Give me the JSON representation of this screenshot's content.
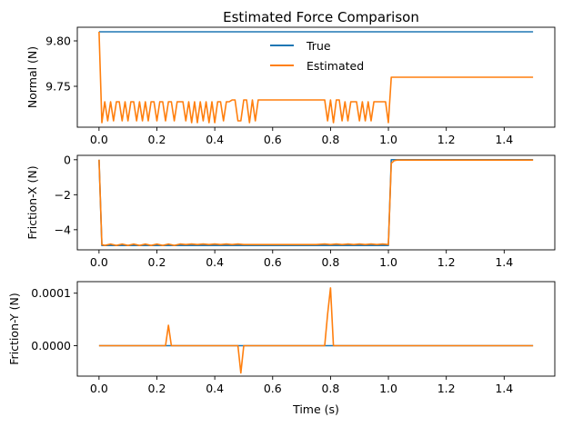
{
  "figure": {
    "title": "Estimated Force Comparison",
    "colors": {
      "true": "#1f77b4",
      "estimated": "#ff7f0e"
    }
  },
  "legend": {
    "placement": "upper-center",
    "labels": [
      "True",
      "Estimated"
    ]
  },
  "chart_data": [
    {
      "type": "line",
      "title": "Estimated Force Comparison",
      "xlabel": "",
      "ylabel": "Normal (N)",
      "xlim": [
        -0.075,
        1.575
      ],
      "ylim": [
        9.705,
        9.815
      ],
      "xticks": [
        0.0,
        0.2,
        0.4,
        0.6,
        0.8,
        1.0,
        1.2,
        1.4
      ],
      "xtick_labels": [
        "0.0",
        "0.2",
        "0.4",
        "0.6",
        "0.8",
        "1.0",
        "1.2",
        "1.4"
      ],
      "yticks": [
        9.75,
        9.8
      ],
      "ytick_labels": [
        "9.75",
        "9.80"
      ],
      "legend": "upper-center",
      "series": [
        {
          "name": "True",
          "x": [
            0.0,
            1.5
          ],
          "y": [
            9.81,
            9.81
          ]
        },
        {
          "name": "Estimated",
          "x": [
            0.0,
            0.01,
            0.02,
            0.03,
            0.04,
            0.05,
            0.06,
            0.07,
            0.08,
            0.09,
            0.1,
            0.11,
            0.12,
            0.13,
            0.14,
            0.15,
            0.16,
            0.17,
            0.18,
            0.19,
            0.2,
            0.21,
            0.22,
            0.23,
            0.24,
            0.25,
            0.26,
            0.27,
            0.28,
            0.29,
            0.3,
            0.31,
            0.32,
            0.33,
            0.34,
            0.35,
            0.36,
            0.37,
            0.38,
            0.39,
            0.4,
            0.41,
            0.42,
            0.43,
            0.44,
            0.45,
            0.46,
            0.47,
            0.48,
            0.49,
            0.5,
            0.51,
            0.52,
            0.53,
            0.54,
            0.55,
            0.56,
            0.57,
            0.6,
            0.7,
            0.78,
            0.79,
            0.8,
            0.81,
            0.82,
            0.83,
            0.84,
            0.85,
            0.86,
            0.87,
            0.88,
            0.89,
            0.9,
            0.91,
            0.92,
            0.93,
            0.94,
            0.95,
            0.96,
            0.97,
            0.98,
            0.99,
            1.0,
            1.01,
            1.02,
            1.5
          ],
          "y": [
            9.81,
            9.71,
            9.733,
            9.712,
            9.733,
            9.712,
            9.733,
            9.733,
            9.712,
            9.733,
            9.712,
            9.733,
            9.733,
            9.712,
            9.733,
            9.712,
            9.733,
            9.712,
            9.733,
            9.733,
            9.712,
            9.733,
            9.733,
            9.712,
            9.733,
            9.733,
            9.712,
            9.733,
            9.733,
            9.733,
            9.712,
            9.733,
            9.71,
            9.733,
            9.71,
            9.733,
            9.712,
            9.733,
            9.71,
            9.733,
            9.71,
            9.733,
            9.733,
            9.712,
            9.733,
            9.733,
            9.735,
            9.735,
            9.712,
            9.712,
            9.735,
            9.735,
            9.71,
            9.735,
            9.712,
            9.735,
            9.735,
            9.735,
            9.735,
            9.735,
            9.735,
            9.712,
            9.735,
            9.71,
            9.735,
            9.735,
            9.712,
            9.733,
            9.712,
            9.733,
            9.733,
            9.733,
            9.712,
            9.733,
            9.712,
            9.733,
            9.712,
            9.733,
            9.733,
            9.733,
            9.733,
            9.733,
            9.71,
            9.76,
            9.76,
            9.76
          ]
        }
      ]
    },
    {
      "type": "line",
      "xlabel": "",
      "ylabel": "Friction-X (N)",
      "xlim": [
        -0.075,
        1.575
      ],
      "ylim": [
        -5.15,
        0.25
      ],
      "xticks": [
        0.0,
        0.2,
        0.4,
        0.6,
        0.8,
        1.0,
        1.2,
        1.4
      ],
      "xtick_labels": [
        "0.0",
        "0.2",
        "0.4",
        "0.6",
        "0.8",
        "1.0",
        "1.2",
        "1.4"
      ],
      "yticks": [
        -4,
        -2,
        0
      ],
      "ytick_labels": [
        "−4",
        "−2",
        "0"
      ],
      "series": [
        {
          "name": "True",
          "x": [
            0.0,
            0.01,
            1.0,
            1.01,
            1.5
          ],
          "y": [
            0.0,
            -4.9,
            -4.9,
            0.0,
            0.0
          ]
        },
        {
          "name": "Estimated",
          "x": [
            0.0,
            0.01,
            0.02,
            0.04,
            0.06,
            0.08,
            0.1,
            0.12,
            0.14,
            0.16,
            0.18,
            0.2,
            0.22,
            0.24,
            0.26,
            0.28,
            0.3,
            0.32,
            0.34,
            0.36,
            0.38,
            0.4,
            0.42,
            0.44,
            0.46,
            0.48,
            0.5,
            0.55,
            0.6,
            0.65,
            0.7,
            0.75,
            0.78,
            0.8,
            0.82,
            0.84,
            0.86,
            0.88,
            0.9,
            0.92,
            0.94,
            0.96,
            0.98,
            1.0,
            1.01,
            1.02,
            1.03,
            1.5
          ],
          "y": [
            0.0,
            -4.85,
            -4.9,
            -4.82,
            -4.9,
            -4.82,
            -4.9,
            -4.82,
            -4.9,
            -4.82,
            -4.9,
            -4.82,
            -4.9,
            -4.82,
            -4.9,
            -4.82,
            -4.85,
            -4.82,
            -4.85,
            -4.82,
            -4.85,
            -4.82,
            -4.85,
            -4.82,
            -4.85,
            -4.82,
            -4.85,
            -4.85,
            -4.85,
            -4.85,
            -4.85,
            -4.85,
            -4.82,
            -4.85,
            -4.82,
            -4.85,
            -4.82,
            -4.85,
            -4.82,
            -4.85,
            -4.82,
            -4.85,
            -4.82,
            -4.85,
            -0.2,
            -0.05,
            -0.02,
            -0.02
          ]
        }
      ]
    },
    {
      "type": "line",
      "xlabel": "Time (s)",
      "ylabel": "Friction-Y (N)",
      "xlim": [
        -0.075,
        1.575
      ],
      "ylim": [
        -5.8e-05,
        0.000122
      ],
      "xticks": [
        0.0,
        0.2,
        0.4,
        0.6,
        0.8,
        1.0,
        1.2,
        1.4
      ],
      "xtick_labels": [
        "0.0",
        "0.2",
        "0.4",
        "0.6",
        "0.8",
        "1.0",
        "1.2",
        "1.4"
      ],
      "yticks": [
        0.0,
        0.0001
      ],
      "ytick_labels": [
        "0.0000",
        "0.0001"
      ],
      "series": [
        {
          "name": "True",
          "x": [
            0.0,
            1.5
          ],
          "y": [
            0.0,
            0.0
          ]
        },
        {
          "name": "Estimated",
          "x": [
            0.0,
            0.23,
            0.24,
            0.25,
            0.48,
            0.49,
            0.5,
            0.78,
            0.79,
            0.8,
            0.81,
            1.5
          ],
          "y": [
            0.0,
            0.0,
            3.9e-05,
            0.0,
            0.0,
            -5.2e-05,
            0.0,
            0.0,
            6e-05,
            0.00011,
            0.0,
            0.0
          ]
        }
      ]
    }
  ]
}
